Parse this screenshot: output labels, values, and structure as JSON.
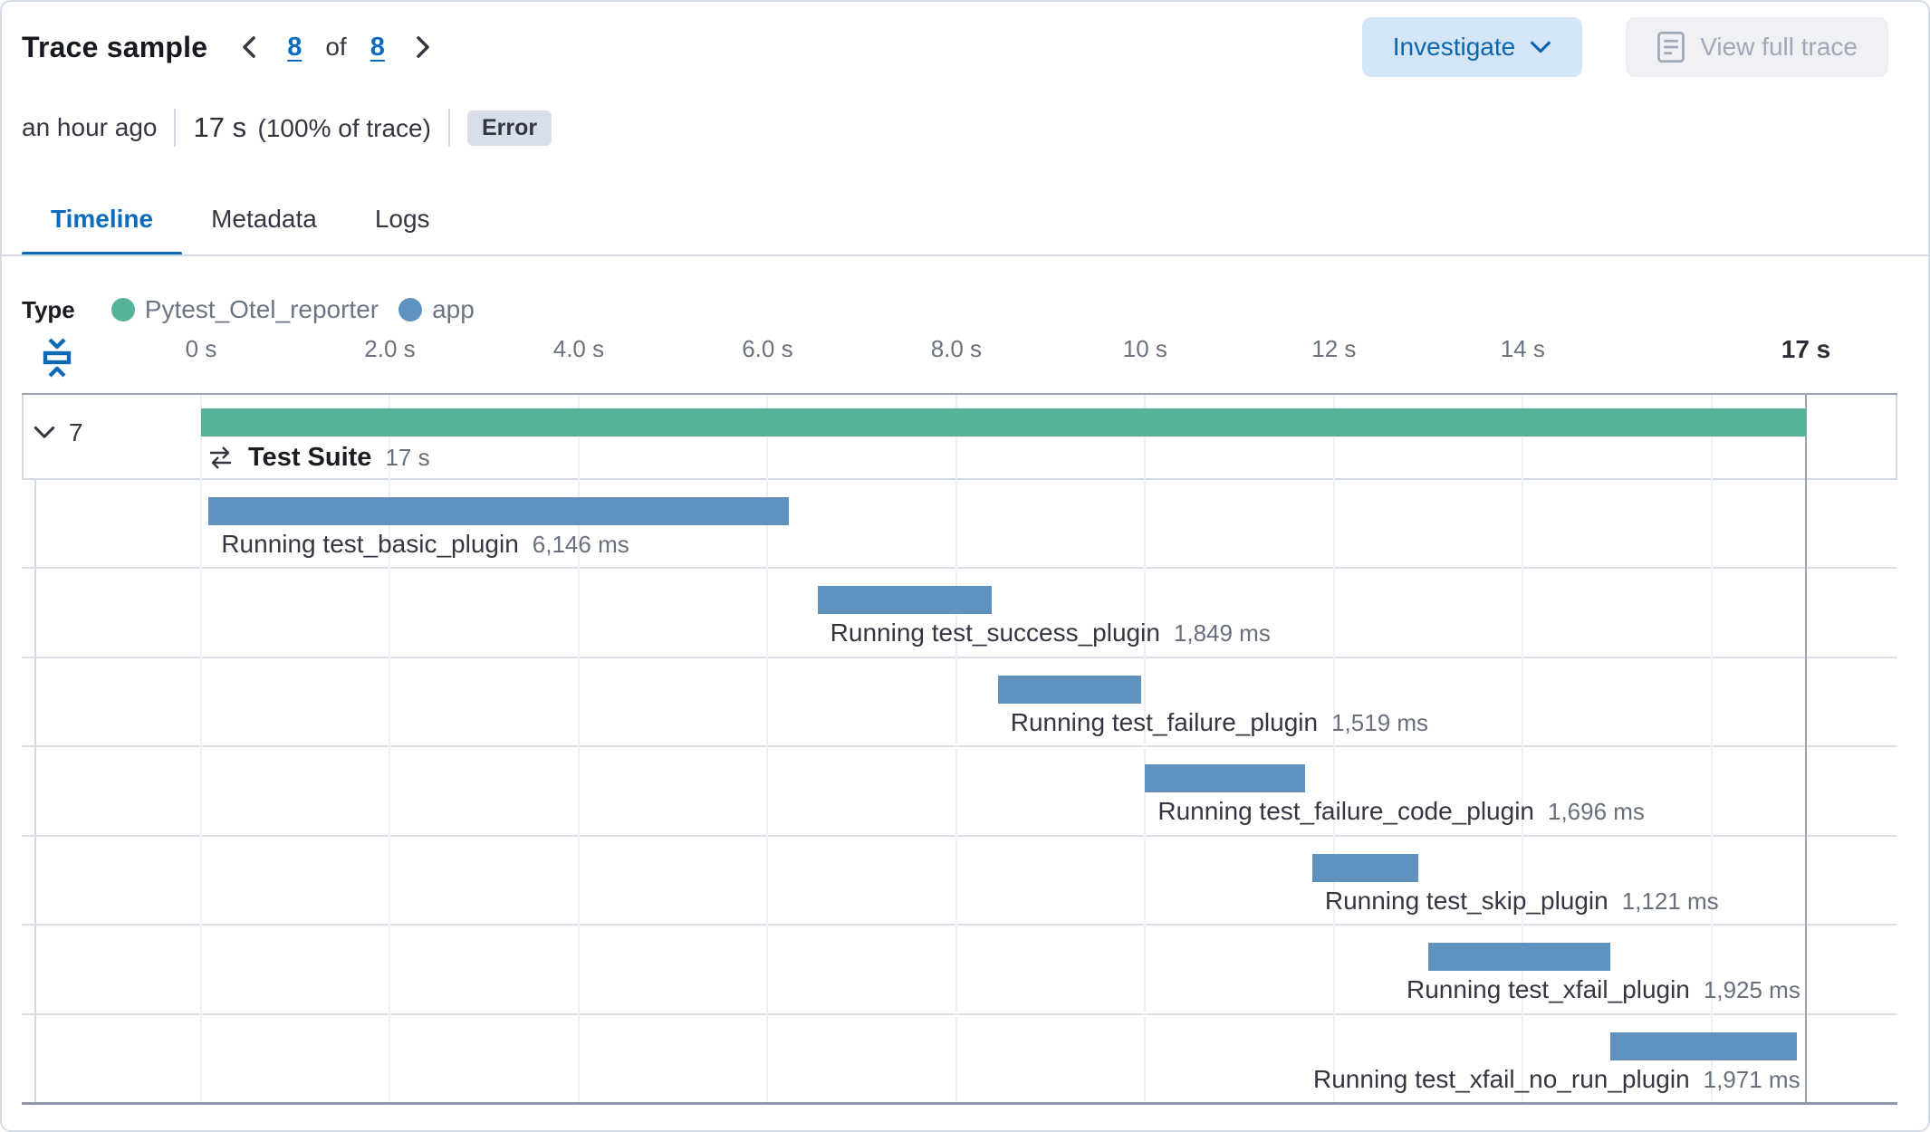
{
  "header": {
    "title": "Trace sample",
    "pagination": {
      "current": "8",
      "of_label": "of",
      "total": "8"
    },
    "investigate_label": "Investigate",
    "view_full_trace_label": "View full trace",
    "timestamp": "an hour ago",
    "duration": "17 s",
    "duration_pct": "(100% of trace)",
    "error_badge": "Error"
  },
  "tabs": [
    {
      "label": "Timeline",
      "active": true
    },
    {
      "label": "Metadata",
      "active": false
    },
    {
      "label": "Logs",
      "active": false
    }
  ],
  "legend": {
    "title": "Type",
    "items": [
      {
        "label": "Pytest_Otel_reporter",
        "color": "#54B399"
      },
      {
        "label": "app",
        "color": "#6092C0"
      }
    ]
  },
  "icons": {
    "pager_prev": "chevron-left-icon",
    "pager_next": "chevron-right-icon",
    "investigate": "chevron-down-icon",
    "view_full_trace": "document-icon",
    "axis_left": "fold-collapse-icon",
    "root_row": "merge-arrows-icon",
    "root_toggle": "chevron-down-icon"
  },
  "colors": {
    "reporter_green": "#54B399",
    "app_blue": "#6092C0",
    "accent_blue": "#0B6CBE"
  },
  "timeline": {
    "axis_range_s": [
      0,
      17
    ],
    "gridline_seconds": [
      0,
      2,
      4,
      6,
      8,
      10,
      12,
      14,
      16
    ],
    "axis_ticks": [
      {
        "label": "0 s",
        "s": 0
      },
      {
        "label": "2.0 s",
        "s": 2
      },
      {
        "label": "4.0 s",
        "s": 4
      },
      {
        "label": "6.0 s",
        "s": 6
      },
      {
        "label": "8.0 s",
        "s": 8
      },
      {
        "label": "10 s",
        "s": 10
      },
      {
        "label": "12 s",
        "s": 12
      },
      {
        "label": "14 s",
        "s": 14
      },
      {
        "label": "17 s",
        "s": 17,
        "emphasis": true
      }
    ],
    "root": {
      "children_count": "7",
      "name": "Test Suite",
      "duration_label": "17 s",
      "type": "Pytest_Otel_reporter",
      "start_s": 0,
      "duration_s": 17
    },
    "spans": [
      {
        "name": "Running test_basic_plugin",
        "duration_label": "6,146 ms",
        "start_s": 0.08,
        "duration_s": 6.146,
        "type": "app"
      },
      {
        "name": "Running test_success_plugin",
        "duration_label": "1,849 ms",
        "start_s": 6.53,
        "duration_s": 1.849,
        "type": "app"
      },
      {
        "name": "Running test_failure_plugin",
        "duration_label": "1,519 ms",
        "start_s": 8.44,
        "duration_s": 1.519,
        "type": "app"
      },
      {
        "name": "Running test_failure_code_plugin",
        "duration_label": "1,696 ms",
        "start_s": 10.0,
        "duration_s": 1.696,
        "type": "app"
      },
      {
        "name": "Running test_skip_plugin",
        "duration_label": "1,121 ms",
        "start_s": 11.77,
        "duration_s": 1.121,
        "type": "app"
      },
      {
        "name": "Running test_xfail_plugin",
        "duration_label": "1,925 ms",
        "start_s": 13.0,
        "duration_s": 1.925,
        "type": "app"
      },
      {
        "name": "Running test_xfail_no_run_plugin",
        "duration_label": "1,971 ms",
        "start_s": 14.93,
        "duration_s": 1.971,
        "type": "app"
      }
    ]
  }
}
